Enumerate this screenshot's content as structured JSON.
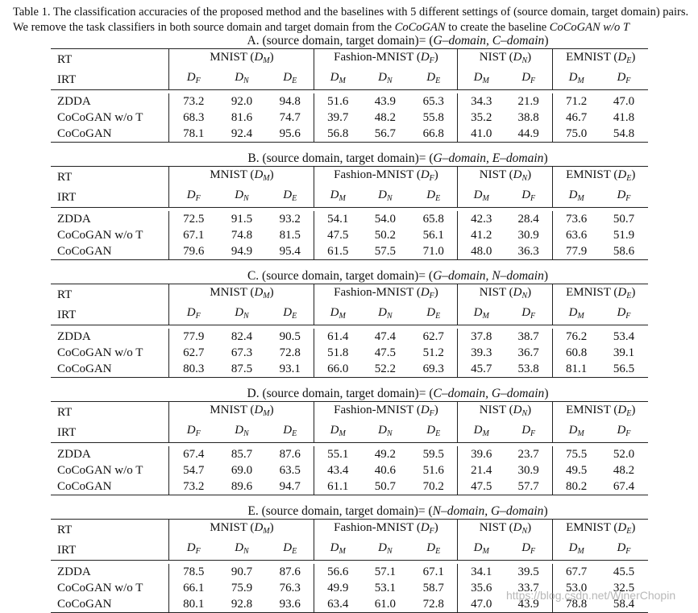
{
  "caption": {
    "part1": "Table 1. The classification accuracies of the proposed method and the baselines with 5 different settings of (source domain, target domain) pairs. We remove the task classifiers in both source domain and target domain from the ",
    "em1": "CoCoGAN",
    "part2": " to create the baseline ",
    "em2": "CoCoGAN w/o T"
  },
  "row_labels": {
    "rt": "RT",
    "irt": "IRT"
  },
  "groups": [
    {
      "name": "MNIST (",
      "sym": "D",
      "sub": "M",
      "close": ")"
    },
    {
      "name": "Fashion-MNIST (",
      "sym": "D",
      "sub": "F",
      "close": ")"
    },
    {
      "name": "NIST (",
      "sym": "D",
      "sub": "N",
      "close": ")"
    },
    {
      "name": "EMNIST (",
      "sym": "D",
      "sub": "E",
      "close": ")"
    }
  ],
  "irt_columns": [
    {
      "sym": "D",
      "sub": "F"
    },
    {
      "sym": "D",
      "sub": "N"
    },
    {
      "sym": "D",
      "sub": "E"
    },
    {
      "sym": "D",
      "sub": "M"
    },
    {
      "sym": "D",
      "sub": "N"
    },
    {
      "sym": "D",
      "sub": "E"
    },
    {
      "sym": "D",
      "sub": "M"
    },
    {
      "sym": "D",
      "sub": "F"
    },
    {
      "sym": "D",
      "sub": "M"
    },
    {
      "sym": "D",
      "sub": "F"
    }
  ],
  "blocks": [
    {
      "title_prefix": "A. (source domain, target domain)= (",
      "title_em": "G–domain, C–domain",
      "title_suffix": ")",
      "rows": [
        {
          "method": "ZDDA",
          "values": [
            "73.2",
            "92.0",
            "94.8",
            "51.6",
            "43.9",
            "65.3",
            "34.3",
            "21.9",
            "71.2",
            "47.0"
          ]
        },
        {
          "method": "CoCoGAN w/o T",
          "values": [
            "68.3",
            "81.6",
            "74.7",
            "39.7",
            "48.2",
            "55.8",
            "35.2",
            "38.8",
            "46.7",
            "41.8"
          ]
        },
        {
          "method": "CoCoGAN",
          "values": [
            "78.1",
            "92.4",
            "95.6",
            "56.8",
            "56.7",
            "66.8",
            "41.0",
            "44.9",
            "75.0",
            "54.8"
          ]
        }
      ]
    },
    {
      "title_prefix": "B. (source domain, target domain)= (",
      "title_em": "G–domain, E–domain",
      "title_suffix": ")",
      "rows": [
        {
          "method": "ZDDA",
          "values": [
            "72.5",
            "91.5",
            "93.2",
            "54.1",
            "54.0",
            "65.8",
            "42.3",
            "28.4",
            "73.6",
            "50.7"
          ]
        },
        {
          "method": "CoCoGAN w/o T",
          "values": [
            "67.1",
            "74.8",
            "81.5",
            "47.5",
            "50.2",
            "56.1",
            "41.2",
            "30.9",
            "63.6",
            "51.9"
          ]
        },
        {
          "method": "CoCoGAN",
          "values": [
            "79.6",
            "94.9",
            "95.4",
            "61.5",
            "57.5",
            "71.0",
            "48.0",
            "36.3",
            "77.9",
            "58.6"
          ]
        }
      ]
    },
    {
      "title_prefix": "C. (source domain, target domain)= (",
      "title_em": "G–domain, N–domain",
      "title_suffix": ")",
      "rows": [
        {
          "method": "ZDDA",
          "values": [
            "77.9",
            "82.4",
            "90.5",
            "61.4",
            "47.4",
            "62.7",
            "37.8",
            "38.7",
            "76.2",
            "53.4"
          ]
        },
        {
          "method": "CoCoGAN w/o T",
          "values": [
            "62.7",
            "67.3",
            "72.8",
            "51.8",
            "47.5",
            "51.2",
            "39.3",
            "36.7",
            "60.8",
            "39.1"
          ]
        },
        {
          "method": "CoCoGAN",
          "values": [
            "80.3",
            "87.5",
            "93.1",
            "66.0",
            "52.2",
            "69.3",
            "45.7",
            "53.8",
            "81.1",
            "56.5"
          ]
        }
      ]
    },
    {
      "title_prefix": "D. (source domain, target domain)= (",
      "title_em": "C–domain, G–domain",
      "title_suffix": ")",
      "rows": [
        {
          "method": "ZDDA",
          "values": [
            "67.4",
            "85.7",
            "87.6",
            "55.1",
            "49.2",
            "59.5",
            "39.6",
            "23.7",
            "75.5",
            "52.0"
          ]
        },
        {
          "method": "CoCoGAN w/o T",
          "values": [
            "54.7",
            "69.0",
            "63.5",
            "43.4",
            "40.6",
            "51.6",
            "21.4",
            "30.9",
            "49.5",
            "48.2"
          ]
        },
        {
          "method": "CoCoGAN",
          "values": [
            "73.2",
            "89.6",
            "94.7",
            "61.1",
            "50.7",
            "70.2",
            "47.5",
            "57.7",
            "80.2",
            "67.4"
          ]
        }
      ]
    },
    {
      "title_prefix": "E. (source domain, target domain)= (",
      "title_em": "N–domain, G–domain",
      "title_suffix": ")",
      "rows": [
        {
          "method": "ZDDA",
          "values": [
            "78.5",
            "90.7",
            "87.6",
            "56.6",
            "57.1",
            "67.1",
            "34.1",
            "39.5",
            "67.7",
            "45.5"
          ]
        },
        {
          "method": "CoCoGAN w/o T",
          "values": [
            "66.1",
            "75.9",
            "76.3",
            "49.9",
            "53.1",
            "58.7",
            "35.6",
            "33.7",
            "53.0",
            "32.5"
          ]
        },
        {
          "method": "CoCoGAN",
          "values": [
            "80.1",
            "92.8",
            "93.6",
            "63.4",
            "61.0",
            "72.8",
            "47.0",
            "43.9",
            "78.8",
            "58.4"
          ]
        }
      ]
    }
  ],
  "watermark": "https://blog.csdn.net/WinerChopin"
}
